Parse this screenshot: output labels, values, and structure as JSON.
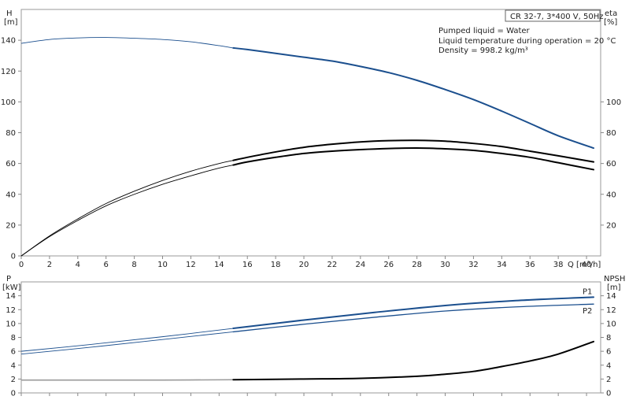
{
  "info": {
    "model": "CR 32-7, 3*400 V, 50Hz",
    "liquid": "Pumped liquid = Water",
    "temperature": "Liquid temperature during operation = 20 °C",
    "density": "Density = 998.2 kg/m³"
  },
  "colors": {
    "head": "#1b4f8e",
    "efficiency": "#000000",
    "power": "#1b4f8e",
    "npsh": "#000000",
    "faded": "#9a9a9a",
    "axis": "#888888"
  },
  "chart_data": [
    {
      "type": "line",
      "panel": "head-efficiency",
      "x_axis": {
        "label": "Q [m³/h]",
        "range": [
          0,
          41
        ],
        "ticks": [
          0,
          2,
          4,
          6,
          8,
          10,
          12,
          14,
          16,
          18,
          20,
          22,
          24,
          26,
          28,
          30,
          32,
          34,
          36,
          38,
          40
        ]
      },
      "y_axis_left": {
        "label_line1": "H",
        "label_line2": "[m]",
        "range": [
          0,
          160
        ],
        "ticks": [
          0,
          20,
          40,
          60,
          80,
          100,
          120,
          140
        ]
      },
      "y_axis_right": {
        "label_line1": "eta",
        "label_line2": "[%]",
        "range": [
          0,
          160
        ],
        "ticks": [
          20,
          40,
          60,
          80,
          100
        ]
      },
      "operating_range_start": 15,
      "series": [
        {
          "key": "head",
          "axis": "left",
          "points": [
            [
              0,
              138
            ],
            [
              2,
              140.5
            ],
            [
              4,
              141.5
            ],
            [
              6,
              141.8
            ],
            [
              8,
              141.3
            ],
            [
              10,
              140.5
            ],
            [
              12,
              139
            ],
            [
              14,
              136.5
            ],
            [
              15,
              135
            ],
            [
              16,
              134
            ],
            [
              18,
              131.5
            ],
            [
              20,
              129
            ],
            [
              22,
              126.5
            ],
            [
              24,
              123
            ],
            [
              26,
              119
            ],
            [
              28,
              114
            ],
            [
              30,
              108
            ],
            [
              32,
              101.5
            ],
            [
              34,
              94
            ],
            [
              36,
              86
            ],
            [
              38,
              78
            ],
            [
              40.5,
              70
            ]
          ]
        },
        {
          "key": "eta-pump",
          "axis": "right",
          "points": [
            [
              0,
              0
            ],
            [
              2,
              13
            ],
            [
              4,
              24
            ],
            [
              6,
              34
            ],
            [
              8,
              42
            ],
            [
              10,
              49
            ],
            [
              12,
              55
            ],
            [
              14,
              60
            ],
            [
              15,
              62
            ],
            [
              16,
              64
            ],
            [
              18,
              67.5
            ],
            [
              20,
              70.5
            ],
            [
              22,
              72.5
            ],
            [
              24,
              74
            ],
            [
              26,
              74.8
            ],
            [
              28,
              75
            ],
            [
              30,
              74.5
            ],
            [
              32,
              73
            ],
            [
              34,
              71
            ],
            [
              36,
              68
            ],
            [
              38,
              65
            ],
            [
              40.5,
              61
            ]
          ]
        },
        {
          "key": "eta-total",
          "axis": "right",
          "points": [
            [
              0,
              0
            ],
            [
              2,
              12.5
            ],
            [
              4,
              23
            ],
            [
              6,
              32.5
            ],
            [
              8,
              40
            ],
            [
              10,
              46.5
            ],
            [
              12,
              52
            ],
            [
              14,
              57
            ],
            [
              15,
              59
            ],
            [
              16,
              61
            ],
            [
              18,
              64
            ],
            [
              20,
              66.5
            ],
            [
              22,
              68
            ],
            [
              24,
              69
            ],
            [
              26,
              69.7
            ],
            [
              28,
              70
            ],
            [
              30,
              69.5
            ],
            [
              32,
              68.5
            ],
            [
              34,
              66.5
            ],
            [
              36,
              64
            ],
            [
              38,
              60.5
            ],
            [
              40.5,
              56
            ]
          ]
        }
      ]
    },
    {
      "type": "line",
      "panel": "power-npsh",
      "x_axis": {
        "range": [
          0,
          41
        ]
      },
      "y_axis_left": {
        "label_line1": "P",
        "label_line2": "[kW]",
        "range": [
          0,
          16
        ],
        "ticks": [
          0,
          2,
          4,
          6,
          8,
          10,
          12,
          14
        ]
      },
      "y_axis_right": {
        "label_line1": "NPSH",
        "label_line2": "[m]",
        "range": [
          0,
          16
        ],
        "ticks": [
          0,
          2,
          4,
          6,
          8,
          10,
          12,
          14
        ]
      },
      "operating_range_start": 15,
      "series": [
        {
          "key": "p1",
          "name": "P1",
          "axis": "left",
          "points": [
            [
              0,
              6
            ],
            [
              5,
              7
            ],
            [
              10,
              8.1
            ],
            [
              15,
              9.3
            ],
            [
              20,
              10.5
            ],
            [
              25,
              11.6
            ],
            [
              30,
              12.6
            ],
            [
              35,
              13.3
            ],
            [
              40.5,
              13.8
            ]
          ]
        },
        {
          "key": "p2",
          "name": "P2",
          "axis": "left",
          "points": [
            [
              0,
              5.6
            ],
            [
              5,
              6.6
            ],
            [
              10,
              7.7
            ],
            [
              15,
              8.8
            ],
            [
              20,
              9.9
            ],
            [
              25,
              10.9
            ],
            [
              30,
              11.8
            ],
            [
              35,
              12.4
            ],
            [
              40.5,
              12.8
            ]
          ]
        },
        {
          "key": "npsh",
          "axis": "right",
          "points": [
            [
              0,
              1.85
            ],
            [
              5,
              1.85
            ],
            [
              10,
              1.85
            ],
            [
              15,
              1.9
            ],
            [
              20,
              2.0
            ],
            [
              24,
              2.1
            ],
            [
              28,
              2.4
            ],
            [
              30,
              2.7
            ],
            [
              32,
              3.1
            ],
            [
              34,
              3.8
            ],
            [
              36,
              4.6
            ],
            [
              38,
              5.6
            ],
            [
              40.5,
              7.4
            ]
          ]
        }
      ]
    }
  ]
}
